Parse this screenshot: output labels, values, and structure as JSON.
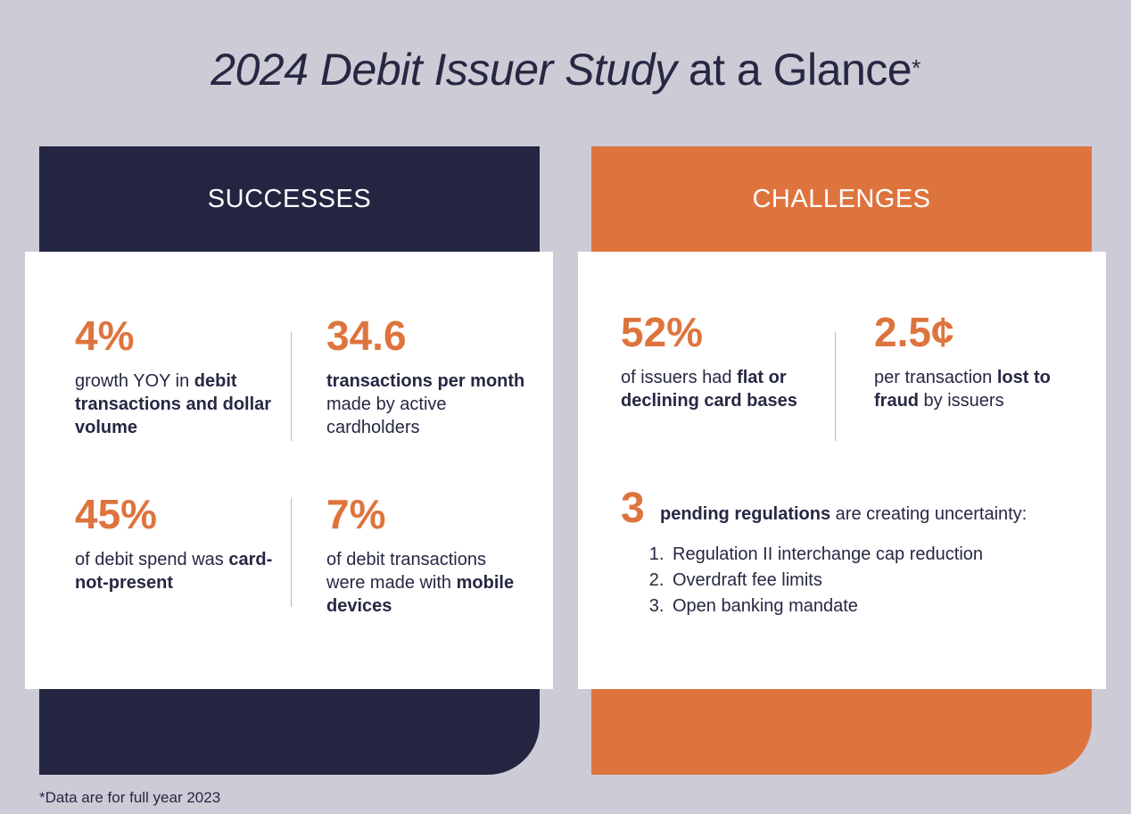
{
  "title": {
    "italic": "2024 Debit Issuer Study",
    "rest": " at a Glance",
    "mark": "*"
  },
  "successes": {
    "heading": "SUCCESSES",
    "stats": [
      {
        "value": "4%",
        "pre": "growth YOY in ",
        "bold": "debit transactions and dollar volume",
        "post": ""
      },
      {
        "value": "34.6",
        "pre": "",
        "bold": "transactions per month",
        "post": " made by active cardholders"
      },
      {
        "value": "45%",
        "pre": "of debit spend was ",
        "bold": "card-not-present",
        "post": ""
      },
      {
        "value": "7%",
        "pre": "of debit transactions were made with ",
        "bold": "mobile devices",
        "post": ""
      }
    ]
  },
  "challenges": {
    "heading": "CHALLENGES",
    "stats": [
      {
        "value": "52%",
        "pre": "of issuers had ",
        "bold": "flat or declining card bases",
        "post": ""
      },
      {
        "value": "2.5¢",
        "pre": "per transaction ",
        "bold": "lost to fraud",
        "post": " by issuers"
      }
    ],
    "pending": {
      "value": "3",
      "bold": "pending regulations",
      "text": " are creating uncertainty:",
      "items": [
        "Regulation II interchange cap reduction",
        "Overdraft fee limits",
        "Open banking mandate"
      ]
    }
  },
  "footnote": "*Data are for full year 2023",
  "colors": {
    "navy": "#242641",
    "orange": "#de743d",
    "background": "#cdcbd6"
  }
}
